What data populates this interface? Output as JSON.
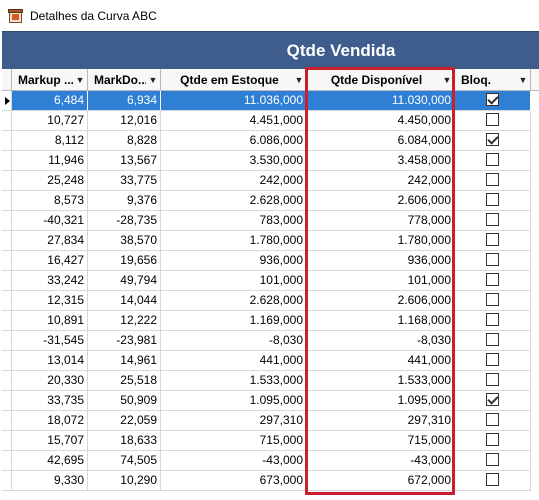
{
  "window": {
    "title": "Detalhes da Curva ABC"
  },
  "band": {
    "title": "Qtde Vendida"
  },
  "columns": [
    {
      "label": "Markup ..."
    },
    {
      "label": "MarkDo..."
    },
    {
      "label": "Qtde em Estoque"
    },
    {
      "label": "Qtde Disponível"
    },
    {
      "label": "Bloq."
    }
  ],
  "rows": [
    {
      "markup": "6,484",
      "markdown": "6,934",
      "estoque": "11.036,000",
      "disponivel": "11.030,000",
      "bloq": true
    },
    {
      "markup": "10,727",
      "markdown": "12,016",
      "estoque": "4.451,000",
      "disponivel": "4.450,000",
      "bloq": false
    },
    {
      "markup": "8,112",
      "markdown": "8,828",
      "estoque": "6.086,000",
      "disponivel": "6.084,000",
      "bloq": true
    },
    {
      "markup": "11,946",
      "markdown": "13,567",
      "estoque": "3.530,000",
      "disponivel": "3.458,000",
      "bloq": false
    },
    {
      "markup": "25,248",
      "markdown": "33,775",
      "estoque": "242,000",
      "disponivel": "242,000",
      "bloq": false
    },
    {
      "markup": "8,573",
      "markdown": "9,376",
      "estoque": "2.628,000",
      "disponivel": "2.606,000",
      "bloq": false
    },
    {
      "markup": "-40,321",
      "markdown": "-28,735",
      "estoque": "783,000",
      "disponivel": "778,000",
      "bloq": false
    },
    {
      "markup": "27,834",
      "markdown": "38,570",
      "estoque": "1.780,000",
      "disponivel": "1.780,000",
      "bloq": false
    },
    {
      "markup": "16,427",
      "markdown": "19,656",
      "estoque": "936,000",
      "disponivel": "936,000",
      "bloq": false
    },
    {
      "markup": "33,242",
      "markdown": "49,794",
      "estoque": "101,000",
      "disponivel": "101,000",
      "bloq": false
    },
    {
      "markup": "12,315",
      "markdown": "14,044",
      "estoque": "2.628,000",
      "disponivel": "2.606,000",
      "bloq": false
    },
    {
      "markup": "10,891",
      "markdown": "12,222",
      "estoque": "1.169,000",
      "disponivel": "1.168,000",
      "bloq": false
    },
    {
      "markup": "-31,545",
      "markdown": "-23,981",
      "estoque": "-8,030",
      "disponivel": "-8,030",
      "bloq": false
    },
    {
      "markup": "13,014",
      "markdown": "14,961",
      "estoque": "441,000",
      "disponivel": "441,000",
      "bloq": false
    },
    {
      "markup": "20,330",
      "markdown": "25,518",
      "estoque": "1.533,000",
      "disponivel": "1.533,000",
      "bloq": false
    },
    {
      "markup": "33,735",
      "markdown": "50,909",
      "estoque": "1.095,000",
      "disponivel": "1.095,000",
      "bloq": true
    },
    {
      "markup": "18,072",
      "markdown": "22,059",
      "estoque": "297,310",
      "disponivel": "297,310",
      "bloq": false
    },
    {
      "markup": "15,707",
      "markdown": "18,633",
      "estoque": "715,000",
      "disponivel": "715,000",
      "bloq": false
    },
    {
      "markup": "42,695",
      "markdown": "74,505",
      "estoque": "-43,000",
      "disponivel": "-43,000",
      "bloq": false
    },
    {
      "markup": "9,330",
      "markdown": "10,290",
      "estoque": "673,000",
      "disponivel": "672,000",
      "bloq": false
    }
  ],
  "selected_row": 0,
  "colors": {
    "band": "#3e5d8c",
    "selection": "#2f7fd5",
    "highlight": "#c8202f"
  },
  "icons": {
    "app": "app-box-icon",
    "sort": "dropdown-arrow-icon",
    "row_pointer": "row-indicator-icon"
  }
}
